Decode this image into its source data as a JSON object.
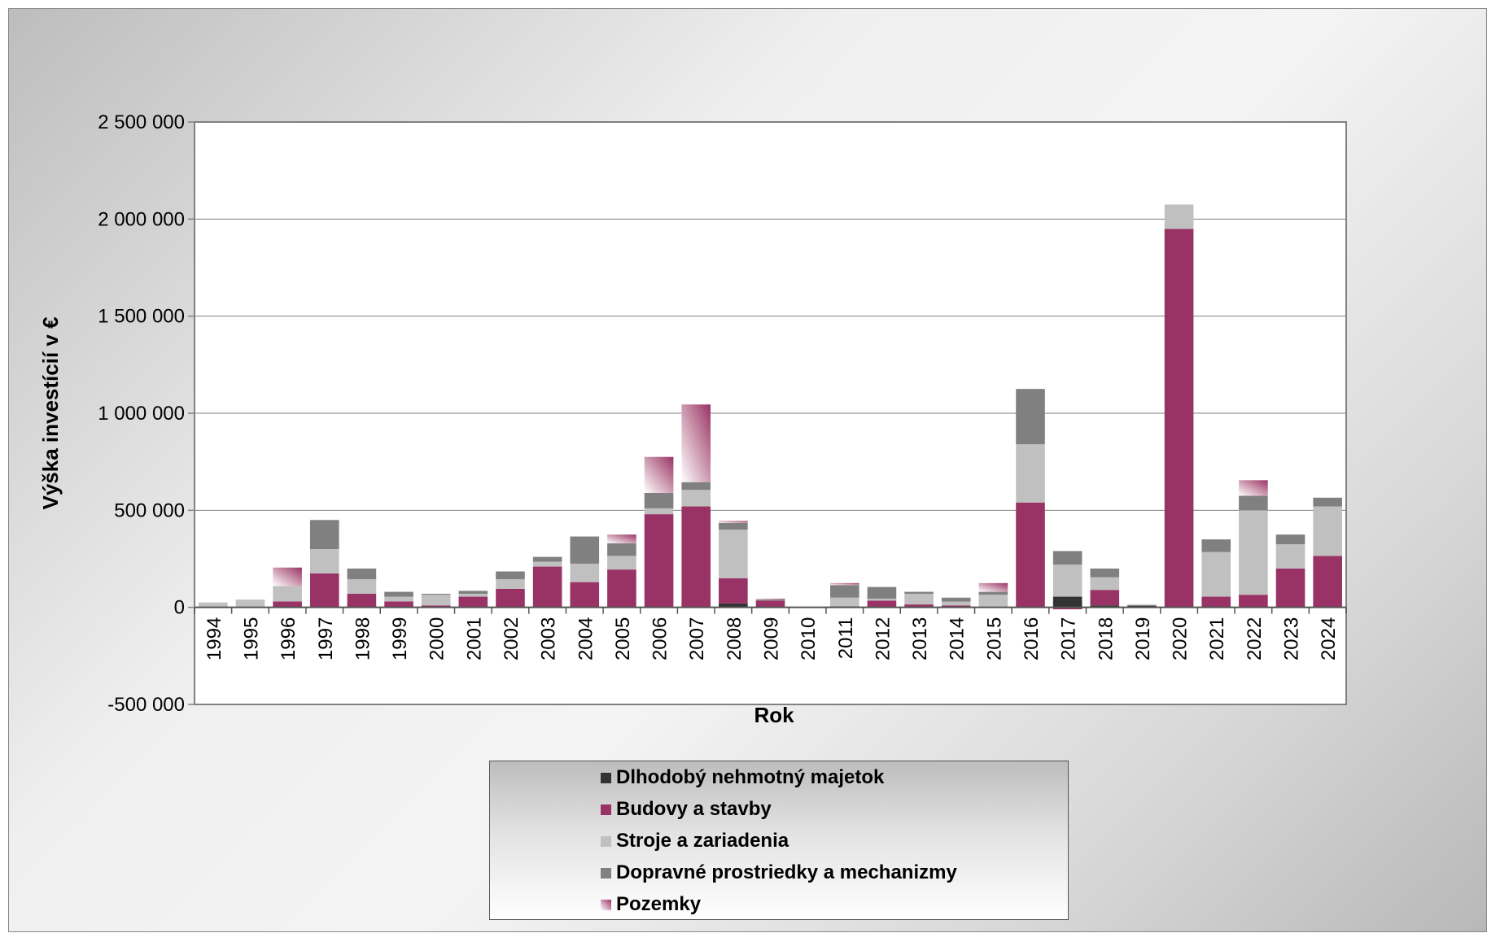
{
  "chart_data": {
    "type": "bar",
    "stacked": true,
    "title": "",
    "xlabel": "Rok",
    "ylabel": "Výška investícií v €",
    "ylim": [
      -500000,
      2500000
    ],
    "yticks": [
      -500000,
      0,
      500000,
      1000000,
      1500000,
      2000000,
      2500000
    ],
    "ytick_labels": [
      "-500 000",
      "0",
      "500 000",
      "1 000 000",
      "1 500 000",
      "2 000 000",
      "2 500 000"
    ],
    "grid": true,
    "legend_position": "bottom",
    "categories": [
      "1994",
      "1995",
      "1996",
      "1997",
      "1998",
      "1999",
      "2000",
      "2001",
      "2002",
      "2003",
      "2004",
      "2005",
      "2006",
      "2007",
      "2008",
      "2009",
      "2010",
      "2011",
      "2012",
      "2013",
      "2014",
      "2015",
      "2016",
      "2017",
      "2018",
      "2019",
      "2020",
      "2021",
      "2022",
      "2023",
      "2024"
    ],
    "series": [
      {
        "name": "Dlhodobý nehmotný majetok",
        "color": "#333333",
        "values": [
          0,
          0,
          0,
          0,
          0,
          0,
          0,
          0,
          0,
          0,
          0,
          0,
          0,
          0,
          20000,
          0,
          0,
          0,
          0,
          0,
          0,
          0,
          0,
          55000,
          10000,
          8000,
          0,
          0,
          0,
          0,
          0
        ]
      },
      {
        "name": "Budovy a stavby",
        "color": "#993366",
        "values": [
          0,
          0,
          30000,
          175000,
          70000,
          30000,
          10000,
          55000,
          95000,
          210000,
          130000,
          195000,
          480000,
          520000,
          130000,
          35000,
          0,
          5000,
          35000,
          15000,
          10000,
          0,
          540000,
          -10000,
          80000,
          0,
          1950000,
          55000,
          65000,
          200000,
          265000
        ]
      },
      {
        "name": "Stroje a zariadenia",
        "color": "#C0C0C0",
        "values": [
          25000,
          40000,
          80000,
          125000,
          75000,
          25000,
          55000,
          15000,
          50000,
          25000,
          95000,
          70000,
          30000,
          85000,
          250000,
          0,
          0,
          45000,
          10000,
          55000,
          20000,
          65000,
          300000,
          165000,
          65000,
          0,
          125000,
          230000,
          435000,
          125000,
          255000
        ]
      },
      {
        "name": "Dopravné prostriedky a mechanizmy",
        "color": "#808080",
        "values": [
          0,
          0,
          0,
          150000,
          55000,
          25000,
          5000,
          15000,
          40000,
          25000,
          140000,
          65000,
          80000,
          40000,
          35000,
          5000,
          0,
          65000,
          60000,
          10000,
          20000,
          15000,
          285000,
          70000,
          45000,
          5000,
          0,
          65000,
          75000,
          50000,
          45000
        ]
      },
      {
        "name": "Pozemky",
        "color": "#993366",
        "gradient": true,
        "values": [
          0,
          0,
          95000,
          0,
          0,
          0,
          0,
          0,
          0,
          0,
          0,
          45000,
          185000,
          400000,
          10000,
          5000,
          0,
          10000,
          0,
          0,
          0,
          45000,
          0,
          0,
          0,
          0,
          0,
          0,
          80000,
          0,
          0
        ]
      }
    ]
  }
}
